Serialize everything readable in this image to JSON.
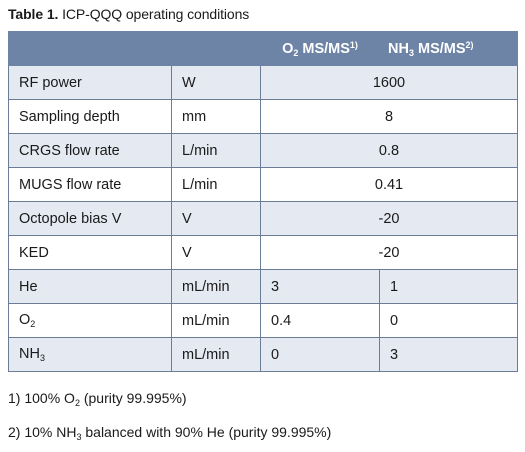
{
  "caption": {
    "label": "Table 1.",
    "text": "ICP-QQQ operating conditions"
  },
  "header": {
    "col_o2_main": "O",
    "col_o2_sub": "2",
    "col_o2_rest": " MS/MS",
    "col_o2_sup": "1)",
    "col_nh3_main": "NH",
    "col_nh3_sub": "3",
    "col_nh3_rest": " MS/MS",
    "col_nh3_sup": "2)"
  },
  "rows": {
    "rf_power": {
      "name": "RF power",
      "unit": "W",
      "value": "1600"
    },
    "sampling_depth": {
      "name": "Sampling depth",
      "unit": "mm",
      "value": "8"
    },
    "crgs": {
      "name": "CRGS flow rate",
      "unit": "L/min",
      "value": "0.8"
    },
    "mugs": {
      "name": "MUGS flow rate",
      "unit": "L/min",
      "value": "0.41"
    },
    "octopole": {
      "name": "Octopole bias V",
      "unit": "V",
      "value": "-20"
    },
    "ked": {
      "name": "KED",
      "unit": "V",
      "value": "-20"
    },
    "he": {
      "name": "He",
      "unit": "mL/min",
      "o2": "3",
      "nh3": "1"
    },
    "o2": {
      "name_main": "O",
      "name_sub": "2",
      "unit": "mL/min",
      "o2": "0.4",
      "nh3": "0"
    },
    "nh3": {
      "name_main": "NH",
      "name_sub": "3",
      "unit": "mL/min",
      "o2": "0",
      "nh3": "3"
    }
  },
  "notes": {
    "n1_a": "1) 100% O",
    "n1_sub": "2",
    "n1_b": " (purity 99.995%)",
    "n2_a": "2) 10% NH",
    "n2_sub": "3",
    "n2_b": " balanced with 90% He (purity 99.995%)"
  }
}
